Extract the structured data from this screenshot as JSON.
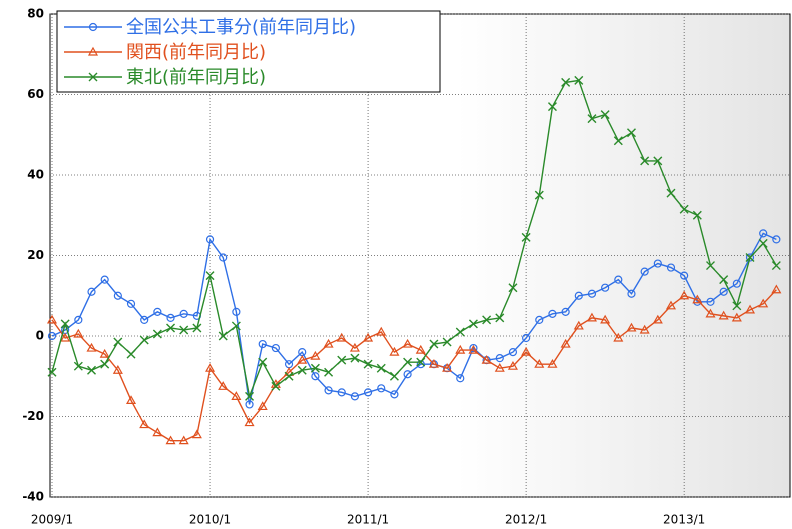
{
  "chart_data": {
    "type": "line",
    "categories": [
      "2009/1",
      null,
      null,
      null,
      null,
      null,
      null,
      null,
      null,
      null,
      null,
      null,
      "2010/1",
      null,
      null,
      null,
      null,
      null,
      null,
      null,
      null,
      null,
      null,
      null,
      "2011/1",
      null,
      null,
      null,
      null,
      null,
      null,
      null,
      null,
      null,
      null,
      null,
      "2012/1",
      null,
      null,
      null,
      null,
      null,
      null,
      null,
      null,
      null,
      null,
      null,
      "2013/1",
      null,
      null,
      null,
      null,
      null,
      null,
      null
    ],
    "series": [
      {
        "name": "全国公共工事分(前年同月比)",
        "color": "#2f6fe6",
        "marker": "circle",
        "values": [
          0,
          1.5,
          4,
          11,
          14,
          10,
          8,
          4,
          6,
          4.5,
          5.5,
          5,
          24,
          19.5,
          6,
          -17,
          -2,
          -3,
          -7,
          -4,
          -10,
          -13.5,
          -14,
          -15,
          -14,
          -13,
          -14.5,
          -9.5,
          -7,
          -7,
          -8,
          -10.5,
          -3,
          -6,
          -5.5,
          -4,
          -0.5,
          4,
          5.5,
          6,
          10,
          10.5,
          12,
          14,
          10.5,
          16,
          18,
          17,
          15,
          8.5,
          8.5,
          11,
          13,
          19.5,
          25.5,
          24
        ]
      },
      {
        "name": "関西(前年同月比)",
        "color": "#e0501e",
        "marker": "triangle",
        "values": [
          4,
          -0.5,
          0.5,
          -3,
          -4.5,
          -8.5,
          -16,
          -22,
          -24,
          -26,
          -26,
          -24.5,
          -8,
          -12.5,
          -15,
          -21.5,
          -17.5,
          -12,
          -9,
          -6,
          -5,
          -2,
          -0.5,
          -3,
          -0.5,
          1,
          -4,
          -2,
          -3.5,
          -7,
          -8,
          -3.5,
          -3.5,
          -6,
          -8,
          -7.5,
          -4,
          -7,
          -7,
          -2,
          2.5,
          4.5,
          4,
          -0.5,
          2,
          1.5,
          4,
          7.5,
          10,
          9,
          5.5,
          5,
          4.5,
          6.5,
          8,
          11.5
        ]
      },
      {
        "name": "東北(前年同月比)",
        "color": "#2a8a2a",
        "marker": "x",
        "values": [
          -9,
          3,
          -7.5,
          -8.5,
          -7,
          -1.5,
          -4.5,
          -1,
          0.5,
          2,
          1.5,
          2,
          15,
          0,
          2.5,
          -15,
          -6.5,
          -12.5,
          -10,
          -8.5,
          -8,
          -9,
          -6,
          -5.5,
          -7,
          -8,
          -10,
          -6.5,
          -6.5,
          -2,
          -1.5,
          1,
          3,
          4,
          4.5,
          12,
          24.5,
          35,
          57,
          63,
          63.5,
          54,
          55,
          48.5,
          50.5,
          43.5,
          43.5,
          35.5,
          31.5,
          30,
          17.5,
          14,
          7.5,
          19.5,
          23,
          17.5
        ]
      }
    ],
    "ylim": [
      -40,
      80
    ],
    "yticks": [
      -40,
      -20,
      0,
      20,
      40,
      60,
      80
    ],
    "grid": true,
    "legend": "upper left"
  }
}
